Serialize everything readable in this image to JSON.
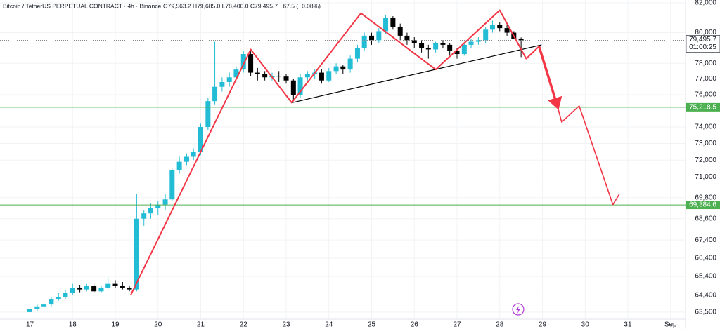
{
  "chart_data": {
    "type": "candlestick",
    "title": "Bitcoin / TetherUS PERPETUAL CONTRACT · 4h · Binance",
    "subtitle": "O79,563.2 H79,685.0 L78,400.0 C79,495.7 −67.5 (−0.08%)",
    "log_scale": true,
    "grid": true,
    "up_color": "#22bcd4",
    "down_color": "#000000",
    "x": [
      17,
      17.17,
      17.33,
      17.5,
      17.67,
      17.83,
      18,
      18.17,
      18.33,
      18.5,
      18.67,
      18.83,
      19,
      19.17,
      19.33,
      19.5,
      19.67,
      19.83,
      20,
      20.17,
      20.33,
      20.5,
      20.67,
      20.83,
      21,
      21.17,
      21.33,
      21.5,
      21.67,
      21.83,
      22,
      22.17,
      22.33,
      22.5,
      22.67,
      22.83,
      23,
      23.17,
      23.33,
      23.5,
      23.67,
      23.83,
      24,
      24.17,
      24.33,
      24.5,
      24.67,
      24.83,
      25,
      25.17,
      25.33,
      25.5,
      25.67,
      25.83,
      26,
      26.17,
      26.33,
      26.5,
      26.67,
      26.83,
      27,
      27.17,
      27.33,
      27.5,
      27.67,
      27.83,
      28,
      28.17,
      28.33,
      28.5
    ],
    "open": [
      63500,
      63650,
      63800,
      63900,
      64200,
      64300,
      64500,
      64800,
      64700,
      64900,
      64600,
      64800,
      65000,
      64900,
      64800,
      64700,
      68600,
      68900,
      69200,
      69400,
      69700,
      71400,
      71900,
      72200,
      72500,
      74000,
      75600,
      76500,
      76800,
      77100,
      77600,
      78600,
      77400,
      77300,
      77100,
      77200,
      77150,
      76900,
      76000,
      77100,
      77300,
      77400,
      76900,
      77500,
      77800,
      77600,
      78300,
      79000,
      79800,
      79500,
      80100,
      81000,
      80400,
      79800,
      79500,
      79300,
      79000,
      78900,
      79300,
      79200,
      78800,
      78600,
      79200,
      79400,
      79500,
      80200,
      80500,
      80300,
      80000,
      79563.2
    ],
    "high": [
      63750,
      63900,
      64000,
      64300,
      64500,
      64700,
      65000,
      64950,
      65000,
      65000,
      64900,
      65300,
      65200,
      65100,
      64900,
      70000,
      69100,
      69500,
      69600,
      70000,
      71500,
      72200,
      72400,
      72700,
      74200,
      75800,
      79400,
      77100,
      77400,
      77800,
      78800,
      78900,
      77700,
      77500,
      77400,
      77500,
      77300,
      77000,
      77300,
      77500,
      77600,
      77600,
      77700,
      78000,
      77900,
      78500,
      79200,
      80000,
      80000,
      80300,
      81200,
      81100,
      80600,
      80000,
      79700,
      79500,
      79200,
      79400,
      79500,
      79300,
      79000,
      79300,
      79600,
      79700,
      80400,
      80800,
      80700,
      80500,
      80100,
      79685
    ],
    "low": [
      63400,
      63550,
      63700,
      63800,
      64100,
      64200,
      64400,
      64550,
      64600,
      64500,
      64500,
      64700,
      64800,
      64700,
      64600,
      64600,
      68200,
      68600,
      68800,
      69100,
      69600,
      71200,
      71700,
      72000,
      72300,
      73800,
      75400,
      76200,
      76500,
      76900,
      77400,
      77200,
      76900,
      76900,
      76900,
      76800,
      76700,
      75700,
      75800,
      76900,
      77000,
      76700,
      76800,
      77300,
      77300,
      77400,
      78100,
      78800,
      79200,
      79300,
      79900,
      80200,
      79500,
      79200,
      79000,
      78700,
      78300,
      78700,
      79000,
      78500,
      78300,
      78500,
      79000,
      79200,
      79300,
      80000,
      80100,
      79800,
      79600,
      78400
    ],
    "close": [
      63650,
      63800,
      63900,
      64200,
      64300,
      64500,
      64800,
      64700,
      64900,
      64600,
      64800,
      65000,
      64900,
      64800,
      64700,
      68600,
      68900,
      69200,
      69400,
      69700,
      71400,
      71900,
      72200,
      72500,
      74000,
      75600,
      76500,
      76800,
      77100,
      77600,
      78600,
      77400,
      77300,
      77100,
      77200,
      77150,
      76900,
      76000,
      77100,
      77300,
      77400,
      76900,
      77500,
      77800,
      77600,
      78300,
      79000,
      79800,
      79500,
      80100,
      81000,
      80400,
      79800,
      79500,
      79300,
      79000,
      78900,
      79300,
      79200,
      78800,
      78600,
      79200,
      79400,
      79500,
      80200,
      80500,
      80300,
      80000,
      79563.2,
      79495.7
    ],
    "xlim": [
      16.3,
      32.35
    ],
    "xticks": [
      17,
      18,
      19,
      20,
      21,
      22,
      23,
      24,
      25,
      26,
      27,
      28,
      29,
      30,
      31,
      {
        "value": 32,
        "label": "Sep"
      }
    ],
    "ylim": [
      63130,
      82190
    ],
    "yticks": [
      {
        "value": 82000,
        "label": "82,000"
      },
      {
        "value": 80000,
        "label": "80,000"
      },
      {
        "value": 78000,
        "label": "78,000"
      },
      {
        "value": 77000,
        "label": "77,000"
      },
      {
        "value": 76000,
        "label": "76,000"
      },
      {
        "value": 74000,
        "label": "74,000"
      },
      {
        "value": 73000,
        "label": "73,000"
      },
      {
        "value": 72000,
        "label": "72,000"
      },
      {
        "value": 71000,
        "label": "71,000"
      },
      {
        "value": 69800,
        "label": "69,800"
      },
      {
        "value": 68600,
        "label": "68,600"
      },
      {
        "value": 67400,
        "label": "67,400"
      },
      {
        "value": 66400,
        "label": "66,400"
      },
      {
        "value": 65400,
        "label": "65,400"
      },
      {
        "value": 64400,
        "label": "64,400"
      },
      {
        "value": 63500,
        "label": "63,500"
      }
    ],
    "last_price": {
      "value": 79495.7,
      "label": "79,495.7"
    },
    "countdown": "01:00:25",
    "levels": [
      {
        "value": 75218.5,
        "label": "75,218.5"
      },
      {
        "value": 69384.6,
        "label": "69,384.6"
      }
    ],
    "level_color": "#4caf50",
    "pattern_color": "#f23645",
    "pattern": {
      "x": [
        19.36,
        22.17,
        23.13,
        24.75,
        26.5,
        28.0,
        28.62,
        28.92
      ],
      "y": [
        64400,
        78900,
        75500,
        81300,
        77600,
        81500,
        78300,
        79100
      ]
    },
    "neckline": {
      "x": [
        23.13,
        28.98
      ],
      "y": [
        75500,
        79200
      ]
    },
    "arrow": {
      "x": [
        28.92,
        29.36
      ],
      "y": [
        79100,
        75200
      ]
    },
    "projection": {
      "x": [
        29.36,
        29.45,
        29.86,
        30.65,
        30.8
      ],
      "y": [
        75200,
        74300,
        75300,
        69400,
        70000
      ]
    }
  }
}
